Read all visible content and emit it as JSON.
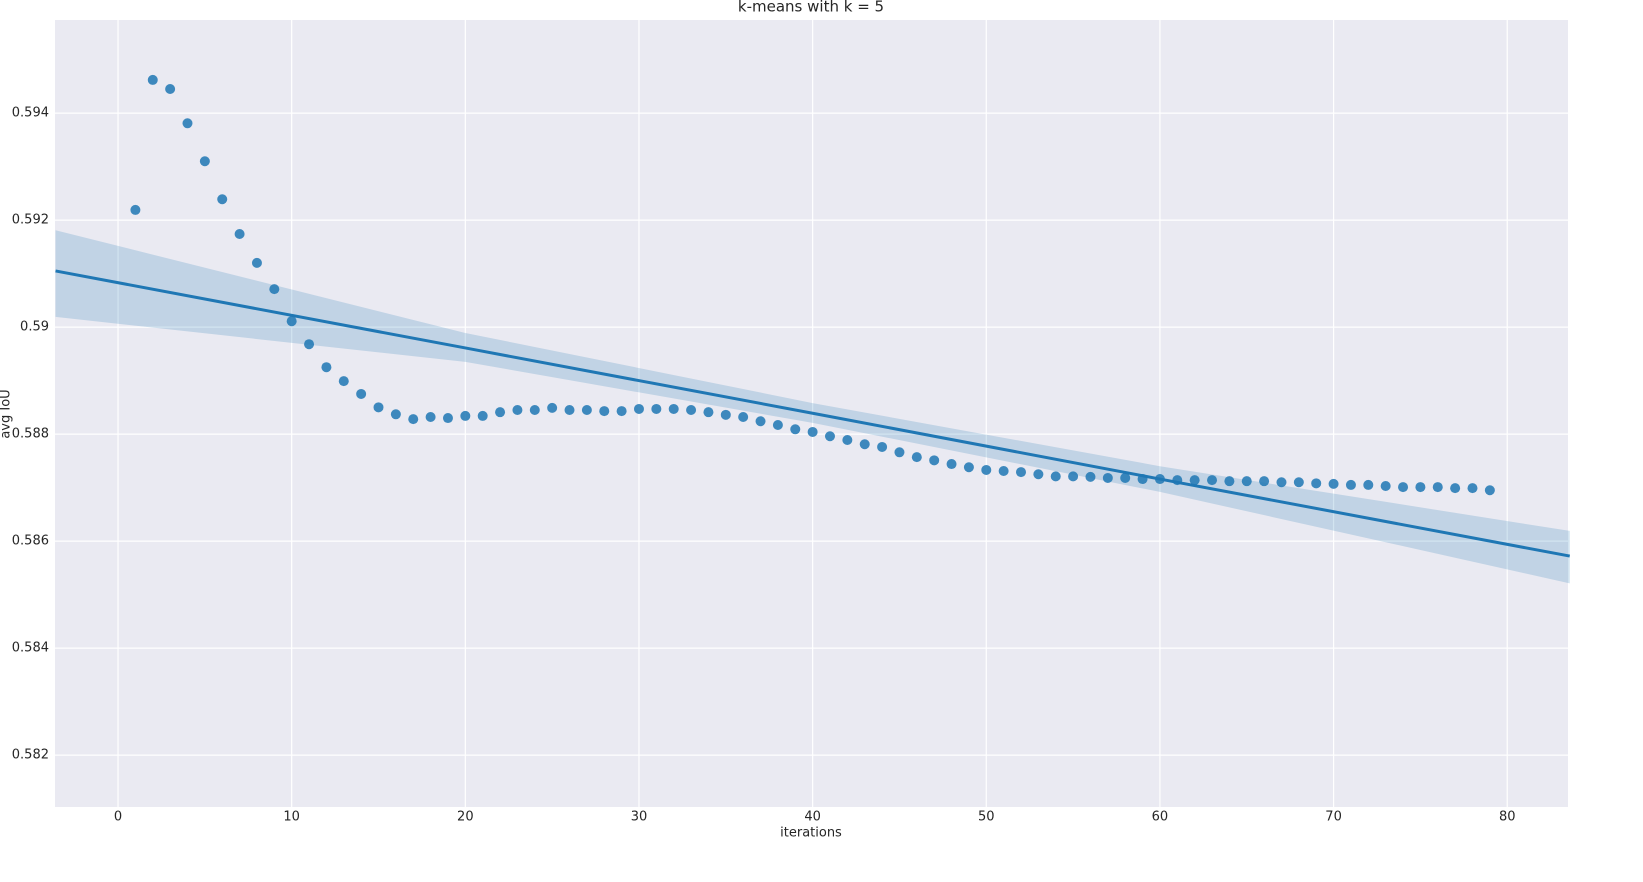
{
  "chart_data": {
    "type": "scatter",
    "title": "k-means with k = 5",
    "x_label": "iterations",
    "y_label": "avg IoU",
    "x": [
      1,
      2,
      3,
      4,
      5,
      6,
      7,
      8,
      9,
      10,
      11,
      12,
      13,
      14,
      15,
      16,
      17,
      18,
      19,
      20,
      21,
      22,
      23,
      24,
      25,
      26,
      27,
      28,
      29,
      30,
      31,
      32,
      33,
      34,
      35,
      36,
      37,
      38,
      39,
      40,
      41,
      42,
      43,
      44,
      45,
      46,
      47,
      48,
      49,
      50,
      51,
      52,
      53,
      54,
      55,
      56,
      57,
      58,
      59,
      60,
      61,
      62,
      63,
      64,
      65,
      66,
      67,
      68,
      69,
      70,
      71,
      72,
      73,
      74,
      75,
      76,
      77,
      78,
      79
    ],
    "values": [
      0.59219,
      0.59462,
      0.59445,
      0.59381,
      0.5931,
      0.59239,
      0.59174,
      0.5912,
      0.59071,
      0.59011,
      0.58968,
      0.58925,
      0.58899,
      0.58875,
      0.5885,
      0.58837,
      0.58828,
      0.58832,
      0.5883,
      0.58834,
      0.58834,
      0.58841,
      0.58845,
      0.58845,
      0.58849,
      0.58845,
      0.58845,
      0.58843,
      0.58843,
      0.58847,
      0.58847,
      0.58847,
      0.58845,
      0.58841,
      0.58836,
      0.58832,
      0.58824,
      0.58817,
      0.58809,
      0.58804,
      0.58796,
      0.58789,
      0.58781,
      0.58776,
      0.58766,
      0.58757,
      0.58751,
      0.58744,
      0.58738,
      0.58733,
      0.58731,
      0.58729,
      0.58725,
      0.58721,
      0.58721,
      0.5872,
      0.58718,
      0.58718,
      0.58716,
      0.58716,
      0.58714,
      0.58714,
      0.58714,
      0.58712,
      0.58712,
      0.58712,
      0.5871,
      0.5871,
      0.58708,
      0.58707,
      0.58705,
      0.58705,
      0.58703,
      0.58701,
      0.58701,
      0.58701,
      0.58699,
      0.58699,
      0.58695
    ],
    "color": "#1f77b4",
    "regression": {
      "x": [
        -3.6,
        20,
        40,
        60,
        83.6
      ],
      "values": [
        0.59105,
        0.58961,
        0.58839,
        0.58716,
        0.58572
      ],
      "ci_upper": [
        0.59181,
        0.58989,
        0.58858,
        0.5874,
        0.58619
      ],
      "ci_lower": [
        0.59019,
        0.58935,
        0.58821,
        0.58692,
        0.58521
      ]
    },
    "xlim": [
      -3.63,
      83.5
    ],
    "ylim": [
      0.58103,
      0.59574
    ],
    "xticks": [
      0,
      10,
      20,
      30,
      40,
      50,
      60,
      70,
      80
    ],
    "yticks": [
      0.582,
      0.584,
      0.586,
      0.588,
      0.59,
      0.592,
      0.594
    ],
    "grid": true
  }
}
